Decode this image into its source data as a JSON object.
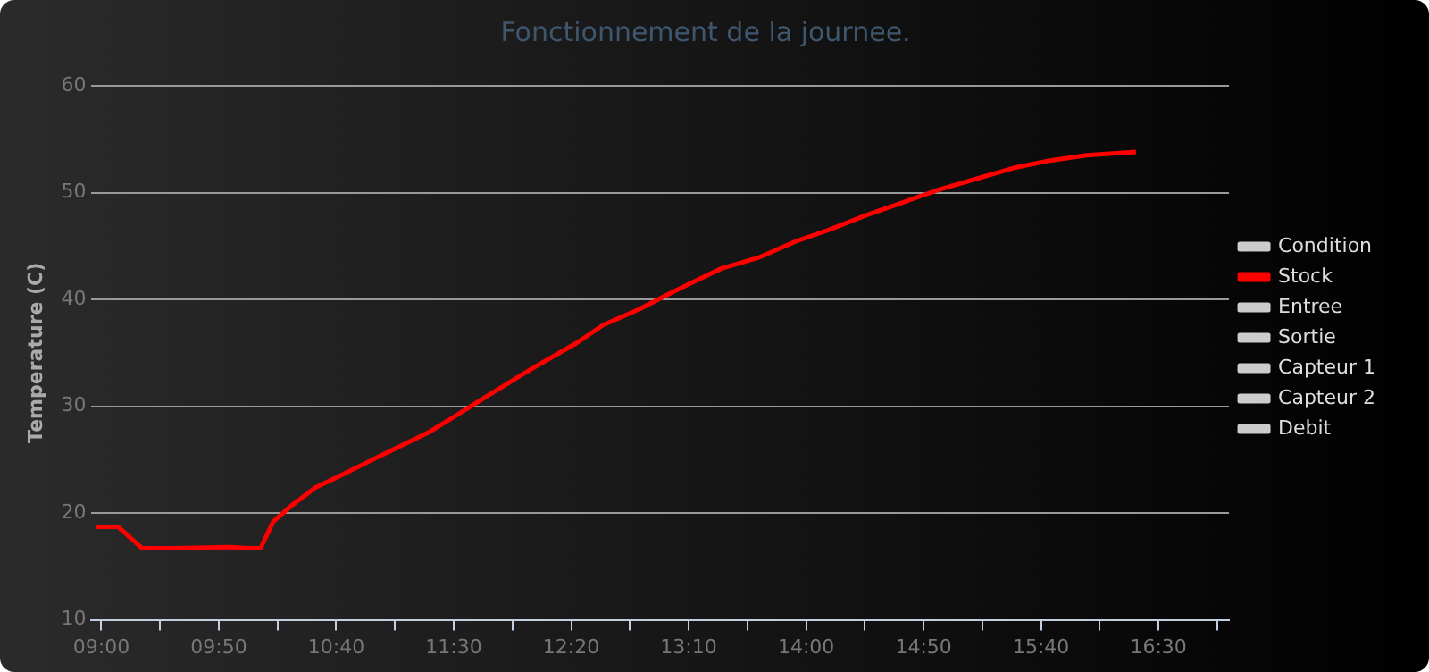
{
  "chart_data": {
    "type": "line",
    "title": "Fonctionnement de la journee.",
    "ylabel": "Temperature (C)",
    "xlim": [
      8.93,
      17.0
    ],
    "xticks": [
      {
        "value": 9,
        "label": "09:00"
      },
      {
        "value": 9.4167,
        "label": null
      },
      {
        "value": 9.8333,
        "label": "09:50"
      },
      {
        "value": 10.25,
        "label": null
      },
      {
        "value": 10.6667,
        "label": "10:40"
      },
      {
        "value": 11.0833,
        "label": null
      },
      {
        "value": 11.5,
        "label": "11:30"
      },
      {
        "value": 11.9167,
        "label": null
      },
      {
        "value": 12.3333,
        "label": "12:20"
      },
      {
        "value": 12.75,
        "label": null
      },
      {
        "value": 13.1667,
        "label": "13:10"
      },
      {
        "value": 13.5833,
        "label": null
      },
      {
        "value": 14,
        "label": "14:00"
      },
      {
        "value": 14.4167,
        "label": null
      },
      {
        "value": 14.8333,
        "label": "14:50"
      },
      {
        "value": 15.25,
        "label": null
      },
      {
        "value": 15.6667,
        "label": "15:40"
      },
      {
        "value": 16.0833,
        "label": null
      },
      {
        "value": 16.5,
        "label": "16:30"
      },
      {
        "value": 16.9167,
        "label": null
      }
    ],
    "ylim": [
      10,
      60
    ],
    "yticks": [
      10,
      20,
      30,
      40,
      50,
      60
    ],
    "grid": "y",
    "legend": "right",
    "marker": "none",
    "line_style": "solid",
    "series": [
      {
        "name": "Condition",
        "color": "#cccccc"
      },
      {
        "name": "Stock",
        "color": "#ff0000",
        "x": [
          8.965,
          9.12,
          9.29,
          9.51,
          9.9,
          10.05,
          10.13,
          10.22,
          10.35,
          10.52,
          10.68,
          10.94,
          11.33,
          11.72,
          12.04,
          12.37,
          12.56,
          12.82,
          13.01,
          13.21,
          13.4,
          13.66,
          13.92,
          14.18,
          14.43,
          14.69,
          14.95,
          15.21,
          15.47,
          15.73,
          15.99,
          16.34
        ],
        "values": [
          18.7,
          18.7,
          16.7,
          16.7,
          16.8,
          16.7,
          16.7,
          19.2,
          20.7,
          22.4,
          23.4,
          25.1,
          27.6,
          30.8,
          33.4,
          35.9,
          37.6,
          39.1,
          40.4,
          41.7,
          42.9,
          43.9,
          45.4,
          46.6,
          47.9,
          49.1,
          50.3,
          51.3,
          52.3,
          53.0,
          53.5,
          53.8
        ]
      },
      {
        "name": "Entree",
        "color": "#cccccc"
      },
      {
        "name": "Sortie",
        "color": "#cccccc"
      },
      {
        "name": "Capteur 1",
        "color": "#cccccc"
      },
      {
        "name": "Capteur 2",
        "color": "#cccccc"
      },
      {
        "name": "Debit",
        "color": "#cccccc"
      }
    ]
  }
}
